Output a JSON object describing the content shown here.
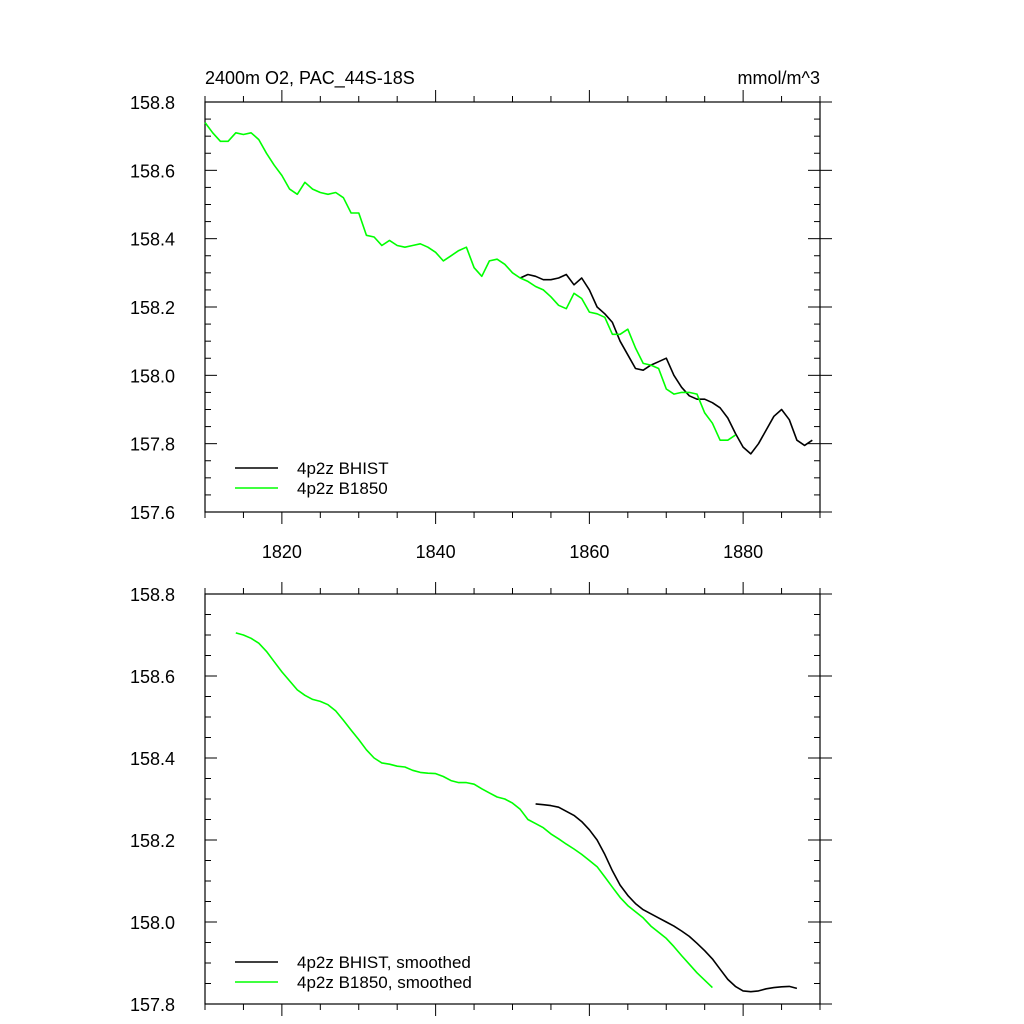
{
  "chart_data": [
    {
      "type": "line",
      "title": "2400m O2, PAC_44S-18S",
      "units": "mmol/m^3",
      "xlabel": "",
      "ylabel": "",
      "xlim": [
        1810,
        1890
      ],
      "ylim": [
        157.6,
        158.8
      ],
      "x_ticks": [
        1820,
        1840,
        1860,
        1880
      ],
      "x_tick_labels": [
        "1820",
        "1840",
        "1860",
        "1880"
      ],
      "y_ticks": [
        157.6,
        157.8,
        158.0,
        158.2,
        158.4,
        158.6,
        158.8
      ],
      "y_tick_labels": [
        "157.6",
        "157.8",
        "158.0",
        "158.2",
        "158.4",
        "158.6",
        "158.8"
      ],
      "legend_position": "bottom-left",
      "series": [
        {
          "name": "4p2z BHIST",
          "color": "#000000",
          "x": [
            1851,
            1852,
            1853,
            1854,
            1855,
            1856,
            1857,
            1858,
            1859,
            1860,
            1861,
            1862,
            1863,
            1864,
            1865,
            1866,
            1867,
            1868,
            1869,
            1870,
            1871,
            1872,
            1873,
            1874,
            1875,
            1876,
            1877,
            1878,
            1879,
            1880,
            1881,
            1882,
            1883,
            1884,
            1885,
            1886,
            1887,
            1888,
            1889
          ],
          "y": [
            158.285,
            158.295,
            158.29,
            158.28,
            158.28,
            158.285,
            158.295,
            158.265,
            158.285,
            158.25,
            158.2,
            158.18,
            158.155,
            158.1,
            158.06,
            158.02,
            158.015,
            158.03,
            158.04,
            158.05,
            158.0,
            157.965,
            157.94,
            157.93,
            157.93,
            157.92,
            157.905,
            157.875,
            157.83,
            157.79,
            157.77,
            157.8,
            157.84,
            157.88,
            157.9,
            157.87,
            157.81,
            157.795,
            157.81
          ]
        },
        {
          "name": "4p2z B1850",
          "color": "#00ff00",
          "x": [
            1810,
            1811,
            1812,
            1813,
            1814,
            1815,
            1816,
            1817,
            1818,
            1819,
            1820,
            1821,
            1822,
            1823,
            1824,
            1825,
            1826,
            1827,
            1828,
            1829,
            1830,
            1831,
            1832,
            1833,
            1834,
            1835,
            1836,
            1837,
            1838,
            1839,
            1840,
            1841,
            1842,
            1843,
            1844,
            1845,
            1846,
            1847,
            1848,
            1849,
            1850,
            1851,
            1852,
            1853,
            1854,
            1855,
            1856,
            1857,
            1858,
            1859,
            1860,
            1861,
            1862,
            1863,
            1864,
            1865,
            1866,
            1867,
            1868,
            1869,
            1870,
            1871,
            1872,
            1873,
            1874,
            1875,
            1876,
            1877,
            1878,
            1879
          ],
          "y": [
            158.74,
            158.71,
            158.685,
            158.685,
            158.71,
            158.705,
            158.71,
            158.69,
            158.65,
            158.615,
            158.585,
            158.545,
            158.53,
            158.565,
            158.545,
            158.535,
            158.53,
            158.535,
            158.52,
            158.475,
            158.475,
            158.41,
            158.405,
            158.38,
            158.395,
            158.38,
            158.375,
            158.38,
            158.385,
            158.375,
            158.36,
            158.335,
            158.35,
            158.365,
            158.375,
            158.315,
            158.29,
            158.335,
            158.34,
            158.325,
            158.3,
            158.285,
            158.275,
            158.26,
            158.25,
            158.23,
            158.205,
            158.195,
            158.24,
            158.225,
            158.185,
            158.18,
            158.17,
            158.12,
            158.12,
            158.135,
            158.08,
            158.035,
            158.03,
            158.02,
            157.96,
            157.945,
            157.95,
            157.95,
            157.945,
            157.89,
            157.86,
            157.81,
            157.81,
            157.825
          ]
        }
      ]
    },
    {
      "type": "line",
      "title": "",
      "xlabel": "",
      "ylabel": "",
      "xlim": [
        1810,
        1890
      ],
      "ylim": [
        157.8,
        158.8
      ],
      "x_ticks": [
        1820,
        1840,
        1860,
        1880
      ],
      "x_tick_labels": [],
      "y_ticks": [
        157.8,
        158.0,
        158.2,
        158.4,
        158.6,
        158.8
      ],
      "y_tick_labels": [
        "157.8",
        "158.0",
        "158.2",
        "158.4",
        "158.6",
        "158.8"
      ],
      "legend_position": "bottom-left",
      "series": [
        {
          "name": "4p2z BHIST, smoothed",
          "color": "#000000",
          "x": [
            1853,
            1854,
            1855,
            1856,
            1857,
            1858,
            1859,
            1860,
            1861,
            1862,
            1863,
            1864,
            1865,
            1866,
            1867,
            1868,
            1869,
            1870,
            1871,
            1872,
            1873,
            1874,
            1875,
            1876,
            1877,
            1878,
            1879,
            1880,
            1881,
            1882,
            1883,
            1884,
            1885,
            1886,
            1887
          ],
          "y": [
            158.288,
            158.286,
            158.284,
            158.28,
            158.27,
            158.26,
            158.245,
            158.225,
            158.2,
            158.165,
            158.125,
            158.09,
            158.065,
            158.045,
            158.03,
            158.02,
            158.01,
            158.0,
            157.99,
            157.978,
            157.965,
            157.948,
            157.93,
            157.91,
            157.885,
            157.86,
            157.843,
            157.832,
            157.83,
            157.832,
            157.837,
            157.84,
            157.842,
            157.843,
            157.838
          ]
        },
        {
          "name": "4p2z B1850, smoothed",
          "color": "#00ff00",
          "x": [
            1814,
            1815,
            1816,
            1817,
            1818,
            1819,
            1820,
            1821,
            1822,
            1823,
            1824,
            1825,
            1826,
            1827,
            1828,
            1829,
            1830,
            1831,
            1832,
            1833,
            1834,
            1835,
            1836,
            1837,
            1838,
            1839,
            1840,
            1841,
            1842,
            1843,
            1844,
            1845,
            1846,
            1847,
            1848,
            1849,
            1850,
            1851,
            1852,
            1853,
            1854,
            1855,
            1856,
            1857,
            1858,
            1859,
            1860,
            1861,
            1862,
            1863,
            1864,
            1865,
            1866,
            1867,
            1868,
            1869,
            1870,
            1871,
            1872,
            1873,
            1874,
            1875,
            1876
          ],
          "y": [
            158.705,
            158.7,
            158.692,
            158.68,
            158.66,
            158.635,
            158.61,
            158.588,
            158.566,
            158.553,
            158.543,
            158.538,
            158.53,
            158.515,
            158.492,
            158.468,
            158.445,
            158.42,
            158.4,
            158.388,
            158.385,
            158.38,
            158.378,
            158.37,
            158.365,
            158.363,
            158.362,
            158.355,
            158.345,
            158.34,
            158.34,
            158.336,
            158.325,
            158.315,
            158.305,
            158.3,
            158.29,
            158.275,
            158.25,
            158.24,
            158.23,
            158.215,
            158.203,
            158.19,
            158.178,
            158.165,
            158.15,
            158.135,
            158.11,
            158.085,
            158.06,
            158.04,
            158.025,
            158.01,
            157.99,
            157.975,
            157.96,
            157.94,
            157.918,
            157.897,
            157.876,
            157.858,
            157.84
          ]
        }
      ]
    }
  ]
}
